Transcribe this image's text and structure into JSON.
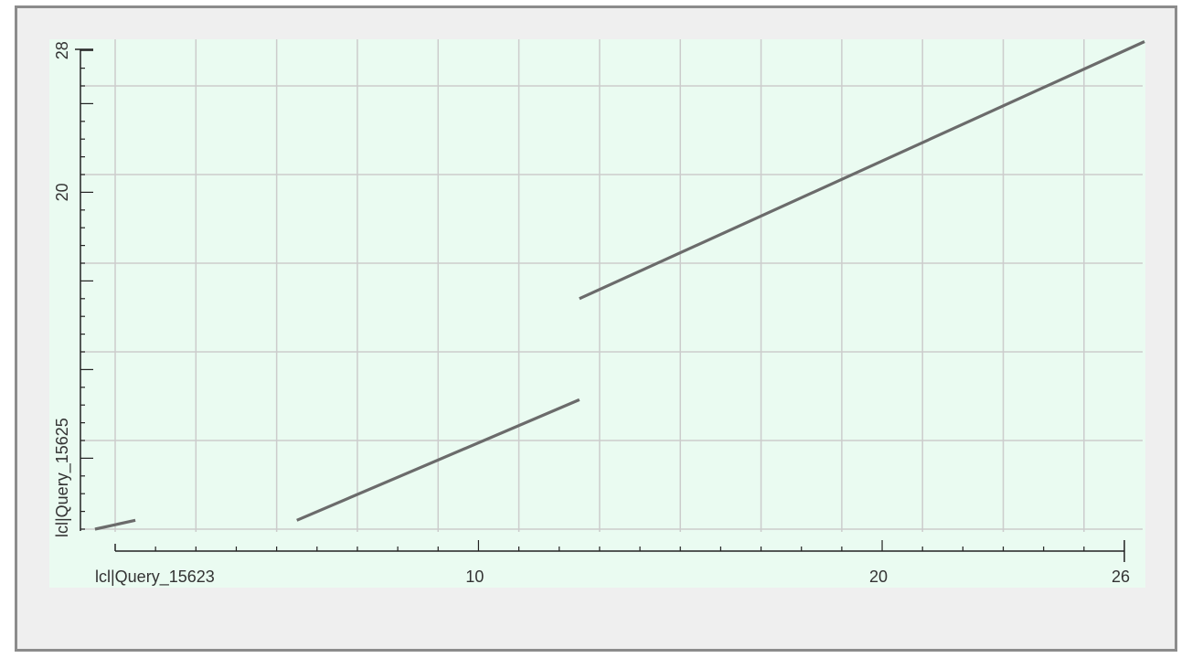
{
  "chart_data": {
    "type": "line",
    "xlabel": "lcl|Query_15623",
    "ylabel": "lcl|Query_15625",
    "xlim": [
      1,
      26
    ],
    "ylim": [
      1,
      28
    ],
    "x_ticks": [
      {
        "value": 10,
        "label": "10"
      },
      {
        "value": 20,
        "label": "20"
      },
      {
        "value": 26,
        "label": "26"
      }
    ],
    "y_ticks": [
      {
        "value": 20,
        "label": "20"
      },
      {
        "value": 28,
        "label": "28"
      }
    ],
    "grid": true,
    "series": [
      {
        "values": [
          [
            0.5,
            1.0
          ],
          [
            1.5,
            1.5
          ]
        ]
      },
      {
        "values": [
          [
            5.5,
            1.5
          ],
          [
            12.5,
            8.3
          ]
        ]
      },
      {
        "values": [
          [
            12.5,
            14.0
          ],
          [
            26.5,
            28.5
          ]
        ]
      }
    ]
  },
  "colors": {
    "plot_background": "#eafbf1",
    "grid": "#cccccc",
    "axis": "#222222",
    "line": "#6b6b6b",
    "frame_background": "#efefef",
    "frame_border": "#8c8c8c"
  }
}
